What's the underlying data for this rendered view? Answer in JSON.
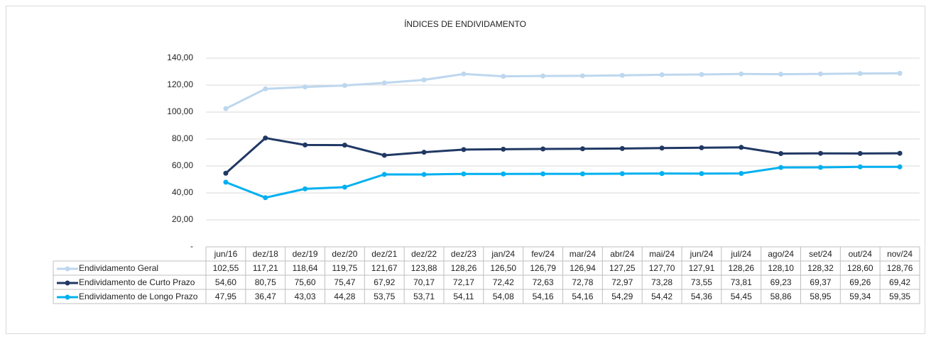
{
  "chart_data": {
    "type": "line",
    "title": "ÍNDICES DE ENDIVIDAMENTO",
    "categories": [
      "jun/16",
      "dez/18",
      "dez/19",
      "dez/20",
      "dez/21",
      "dez/22",
      "dez/23",
      "jan/24",
      "fev/24",
      "mar/24",
      "abr/24",
      "mai/24",
      "jun/24",
      "jul/24",
      "ago/24",
      "set/24",
      "out/24",
      "nov/24"
    ],
    "series": [
      {
        "name": "Endividamento Geral",
        "color": "#bdd7ee",
        "values": [
          102.55,
          117.21,
          118.64,
          119.75,
          121.67,
          123.88,
          128.26,
          126.5,
          126.79,
          126.94,
          127.25,
          127.7,
          127.91,
          128.26,
          128.1,
          128.32,
          128.6,
          128.76
        ],
        "value_labels": [
          "102,55",
          "117,21",
          "118,64",
          "119,75",
          "121,67",
          "123,88",
          "128,26",
          "126,50",
          "126,79",
          "126,94",
          "127,25",
          "127,70",
          "127,91",
          "128,26",
          "128,10",
          "128,32",
          "128,60",
          "128,76"
        ]
      },
      {
        "name": "Endividamento de Curto Prazo",
        "color": "#203864",
        "values": [
          54.6,
          80.75,
          75.6,
          75.47,
          67.92,
          70.17,
          72.17,
          72.42,
          72.63,
          72.78,
          72.97,
          73.28,
          73.55,
          73.81,
          69.23,
          69.37,
          69.26,
          69.42
        ],
        "value_labels": [
          "54,60",
          "80,75",
          "75,60",
          "75,47",
          "67,92",
          "70,17",
          "72,17",
          "72,42",
          "72,63",
          "72,78",
          "72,97",
          "73,28",
          "73,55",
          "73,81",
          "69,23",
          "69,37",
          "69,26",
          "69,42"
        ]
      },
      {
        "name": "Endividamento de Longo Prazo",
        "color": "#00b0f0",
        "values": [
          47.95,
          36.47,
          43.03,
          44.28,
          53.75,
          53.71,
          54.11,
          54.08,
          54.16,
          54.16,
          54.29,
          54.42,
          54.36,
          54.45,
          58.86,
          58.95,
          59.34,
          59.35
        ],
        "value_labels": [
          "47,95",
          "36,47",
          "43,03",
          "44,28",
          "53,75",
          "53,71",
          "54,11",
          "54,08",
          "54,16",
          "54,16",
          "54,29",
          "54,42",
          "54,36",
          "54,45",
          "58,86",
          "58,95",
          "59,34",
          "59,35"
        ]
      }
    ],
    "ylim": [
      0,
      140
    ],
    "yticks": [
      {
        "value": 0,
        "label": "-"
      },
      {
        "value": 20,
        "label": "20,00"
      },
      {
        "value": 40,
        "label": "40,00"
      },
      {
        "value": 60,
        "label": "60,00"
      },
      {
        "value": 80,
        "label": "80,00"
      },
      {
        "value": 100,
        "label": "100,00"
      },
      {
        "value": 120,
        "label": "120,00"
      },
      {
        "value": 140,
        "label": "140,00"
      }
    ],
    "grid": true
  }
}
